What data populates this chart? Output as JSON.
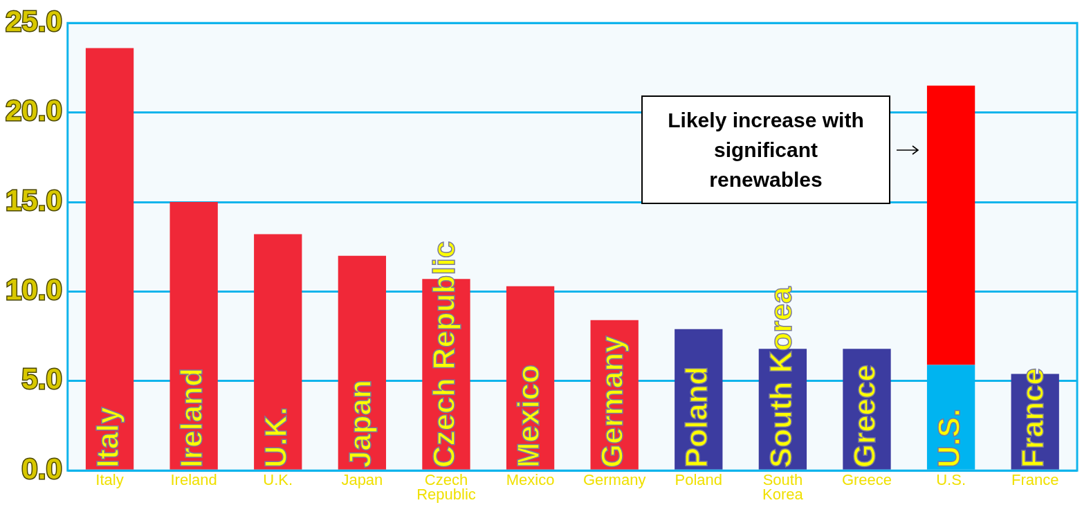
{
  "chart_data": {
    "type": "bar",
    "stacked": true,
    "categories": [
      "Italy",
      "Ireland",
      "U.K.",
      "Japan",
      "Czech Republic",
      "Mexico",
      "Germany",
      "Poland",
      "South Korea",
      "Greece",
      "U.S.",
      "France"
    ],
    "series": [
      {
        "colors": [
          "#f02838",
          "#f02838",
          "#f02838",
          "#f02838",
          "#f02838",
          "#f02838",
          "#f02838",
          "#3c3ca0",
          "#3c3ca0",
          "#3c3ca0",
          "#00b4f0",
          "#3c3ca0"
        ],
        "values": [
          23.6,
          15.0,
          13.2,
          12.0,
          10.7,
          10.3,
          8.4,
          7.9,
          6.8,
          6.8,
          5.9,
          5.4
        ]
      },
      {
        "color": "#ff0000",
        "values": [
          null,
          null,
          null,
          null,
          null,
          null,
          null,
          null,
          null,
          null,
          15.6,
          null
        ]
      }
    ],
    "ylim": [
      0,
      25
    ],
    "yticks": [
      {
        "value": 0,
        "label": "0.0"
      },
      {
        "value": 5,
        "label": "5.0"
      },
      {
        "value": 10,
        "label": "10.0"
      },
      {
        "value": 15,
        "label": "15.0"
      },
      {
        "value": 20,
        "label": "20.0"
      },
      {
        "value": 25,
        "label": "25.0"
      }
    ],
    "grid": "y",
    "annotations": [
      "Likely increase with significant renewables"
    ]
  }
}
